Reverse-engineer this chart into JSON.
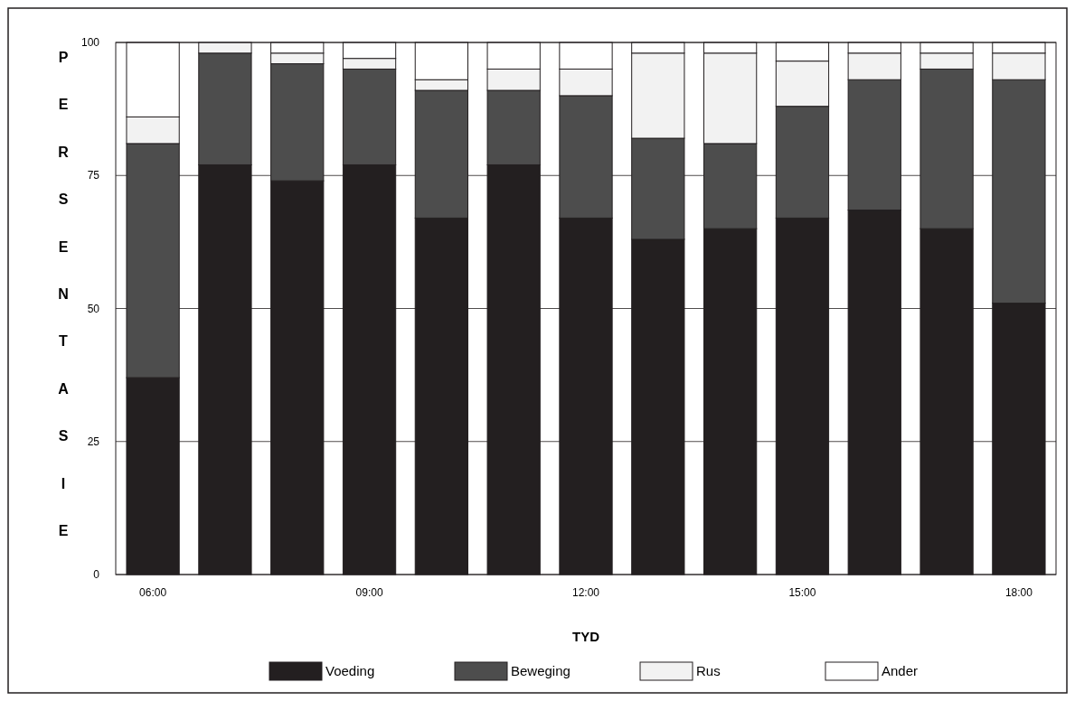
{
  "chart_data": {
    "type": "bar",
    "xlabel": "TYD",
    "ylabel": "PERSENTASIE",
    "stacked": true,
    "categories": [
      "06:00",
      null,
      null,
      "09:00",
      null,
      null,
      "12:00",
      null,
      null,
      "15:00",
      null,
      null,
      "18:00"
    ],
    "series": [
      {
        "name": "Voeding",
        "color": "#231f20",
        "values": [
          37,
          77,
          74,
          77,
          67,
          77,
          67,
          63,
          65,
          67,
          68.5,
          65,
          51
        ]
      },
      {
        "name": "Beweging",
        "color": "#4d4d4d",
        "values": [
          44,
          21,
          22,
          18,
          24,
          14,
          23,
          19,
          16,
          21,
          24.5,
          30,
          42
        ]
      },
      {
        "name": "Rus",
        "color": "#f2f2f2",
        "values": [
          5,
          2,
          2,
          2,
          2,
          4,
          5,
          16,
          17,
          8.5,
          5,
          3,
          5
        ]
      },
      {
        "name": "Ander",
        "color": "#ffffff",
        "values": [
          14,
          0,
          2,
          3,
          7,
          5,
          5,
          2,
          2,
          3.5,
          2,
          2,
          2
        ]
      }
    ],
    "ylim": [
      0,
      100
    ],
    "yticks": [
      0,
      25,
      50,
      75,
      100
    ],
    "grid": "y",
    "legend": "bottom"
  }
}
